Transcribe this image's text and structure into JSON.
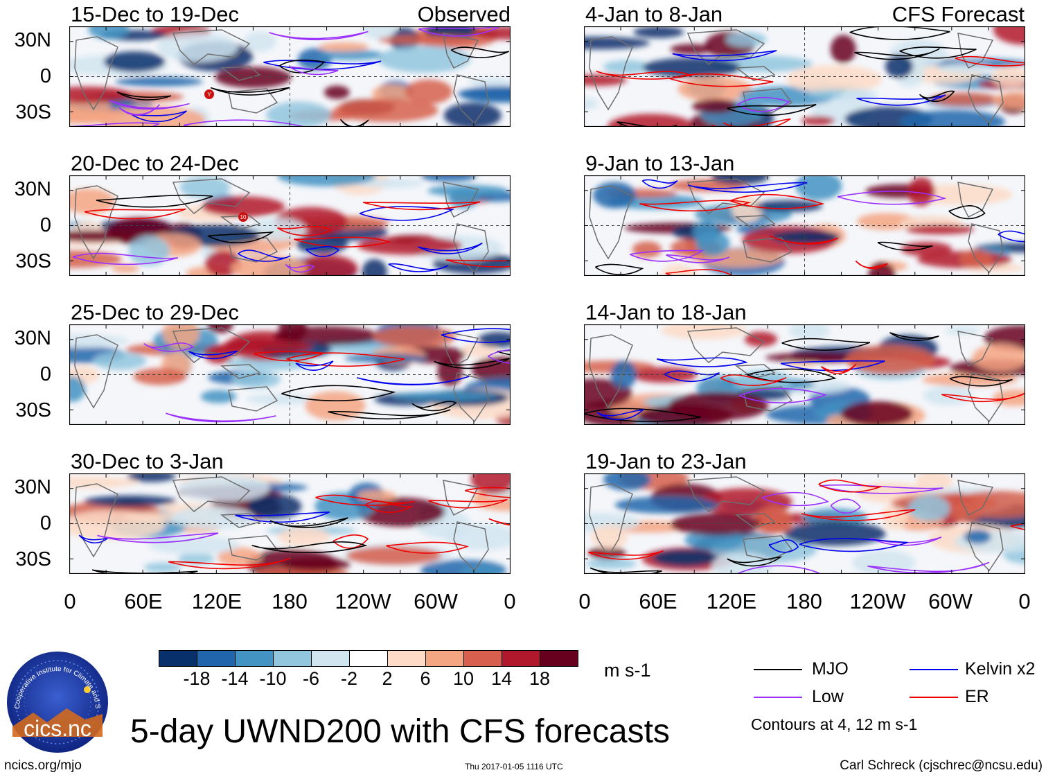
{
  "panels": [
    {
      "title": "15-Dec to 19-Dec",
      "label": "Observed"
    },
    {
      "title": "20-Dec to 24-Dec",
      "label": ""
    },
    {
      "title": "25-Dec to 29-Dec",
      "label": ""
    },
    {
      "title": "30-Dec to 3-Jan",
      "label": ""
    },
    {
      "title": "4-Jan to 8-Jan",
      "label": "CFS Forecast"
    },
    {
      "title": "9-Jan to 13-Jan",
      "label": ""
    },
    {
      "title": "14-Jan to 18-Jan",
      "label": ""
    },
    {
      "title": "19-Jan to 23-Jan",
      "label": ""
    }
  ],
  "axes": {
    "y_ticks": [
      "30N",
      "0",
      "30S"
    ],
    "x_ticks": [
      "0",
      "60E",
      "120E",
      "180",
      "120W",
      "60W",
      "0"
    ]
  },
  "colorbar": {
    "labels": [
      "-18",
      "-14",
      "-10",
      "-6",
      "-2",
      "2",
      "6",
      "10",
      "14",
      "18"
    ],
    "colors": [
      "#08306b",
      "#2166ac",
      "#4393c3",
      "#92c5de",
      "#d1e5f0",
      "#ffffff",
      "#fddbc7",
      "#f4a582",
      "#d6604d",
      "#b2182b",
      "#67001f"
    ],
    "units": "m s-1"
  },
  "legend": {
    "items": [
      {
        "label": "MJO",
        "color": "#000000"
      },
      {
        "label": "Kelvin x2",
        "color": "#0000ee"
      },
      {
        "label": "Low",
        "color": "#9b30ff"
      },
      {
        "label": "ER",
        "color": "#ee0000"
      }
    ],
    "note": "Contours at 4, 12 m s-1"
  },
  "main_title": "5-day UWND200 with CFS forecasts",
  "logo_text": "cics.nc",
  "logo_ring_text": "Cooperative Institute for Climate and Satellites",
  "footer": {
    "left": "ncics.org/mjo",
    "center": "Thu 2017-01-05 1116 UTC",
    "right": "Carl Schreck (cjschrec@ncsu.edu)"
  },
  "storm_markers": [
    "Y",
    "10"
  ]
}
